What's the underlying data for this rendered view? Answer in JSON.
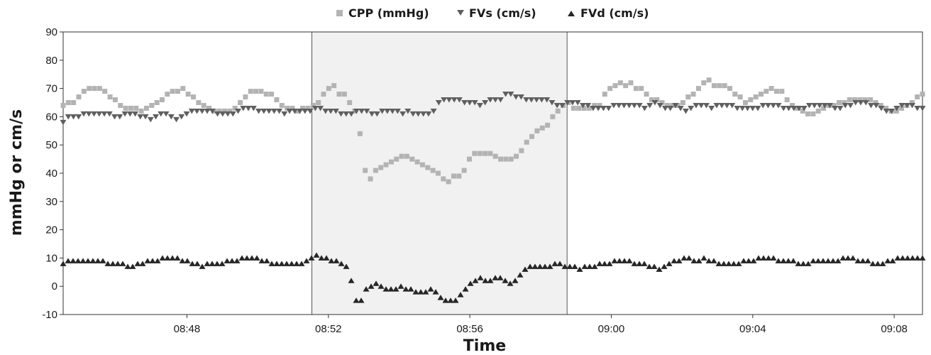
{
  "chart_data": {
    "type": "scatter",
    "title": "",
    "xlabel": "Time",
    "ylabel": "mmHg or cm/s",
    "ylim": [
      -10,
      90
    ],
    "y_ticks": [
      "90",
      "80",
      "70",
      "60",
      "50",
      "40",
      "30",
      "20",
      "10",
      "0",
      "-10"
    ],
    "x_range_minutes": [
      524.5,
      548.8
    ],
    "x_tick_labels": [
      "08:48",
      "08:52",
      "08:56",
      "09:00",
      "09:04",
      "09:08"
    ],
    "x_tick_minutes": [
      528,
      532,
      536,
      540,
      544,
      548
    ],
    "grid": false,
    "legend_position": "top-center",
    "shaded_region": {
      "start": "08:51:32",
      "end": "08:58:45",
      "color": "#f1f1f1"
    },
    "series": [
      {
        "name": "CPP (mmHg)",
        "marker": "square",
        "color": "#b3b3b3",
        "y": [
          64,
          65,
          65,
          67,
          69,
          70,
          70,
          70,
          69,
          67,
          66,
          64,
          63,
          63,
          63,
          62,
          63,
          64,
          65,
          66,
          68,
          69,
          69,
          70,
          68,
          67,
          65,
          64,
          63,
          62,
          62,
          62,
          62,
          63,
          65,
          67,
          69,
          69,
          69,
          68,
          68,
          66,
          64,
          63,
          63,
          62,
          63,
          63,
          64,
          65,
          68,
          70,
          71,
          68,
          68,
          65,
          62,
          54,
          41,
          38,
          41,
          42,
          43,
          44,
          45,
          46,
          46,
          45,
          44,
          43,
          42,
          41,
          40,
          38,
          37,
          39,
          39,
          41,
          45,
          47,
          47,
          47,
          47,
          46,
          45,
          45,
          45,
          46,
          48,
          51,
          53,
          55,
          56,
          57,
          60,
          62,
          64,
          65,
          63,
          63,
          63,
          63,
          64,
          64,
          68,
          70,
          71,
          72,
          71,
          72,
          70,
          70,
          68,
          66,
          66,
          65,
          64,
          64,
          64,
          65,
          67,
          68,
          70,
          72,
          73,
          71,
          71,
          71,
          70,
          68,
          67,
          65,
          66,
          67,
          68,
          69,
          70,
          69,
          69,
          66,
          64,
          63,
          62,
          61,
          61,
          62,
          63,
          64,
          64,
          65,
          65,
          66,
          66,
          66,
          66,
          66,
          65,
          64,
          63,
          62,
          62,
          63,
          64,
          65,
          67,
          68
        ]
      },
      {
        "name": "FVs (cm/s)",
        "marker": "triangle-down",
        "color": "#5f5f5f",
        "y": [
          58,
          60,
          60,
          60,
          61,
          61,
          61,
          61,
          61,
          61,
          60,
          60,
          61,
          61,
          61,
          60,
          60,
          59,
          60,
          61,
          61,
          60,
          59,
          60,
          61,
          62,
          62,
          62,
          62,
          62,
          61,
          61,
          61,
          61,
          62,
          63,
          63,
          63,
          62,
          62,
          62,
          62,
          62,
          61,
          62,
          62,
          62,
          62,
          62,
          63,
          63,
          62,
          62,
          62,
          61,
          61,
          61,
          62,
          62,
          62,
          61,
          61,
          62,
          62,
          62,
          62,
          61,
          62,
          61,
          61,
          61,
          61,
          62,
          65,
          66,
          66,
          66,
          66,
          65,
          65,
          65,
          64,
          65,
          66,
          66,
          66,
          68,
          68,
          67,
          67,
          66,
          66,
          66,
          66,
          66,
          65,
          64,
          64,
          65,
          65,
          65,
          64,
          64,
          63,
          63,
          63,
          63,
          64,
          64,
          64,
          64,
          64,
          64,
          63,
          64,
          65,
          64,
          63,
          63,
          64,
          63,
          62,
          63,
          64,
          64,
          64,
          63,
          64,
          64,
          64,
          64,
          63,
          63,
          63,
          63,
          63,
          64,
          64,
          64,
          64,
          63,
          63,
          63,
          63,
          63,
          64,
          64,
          64,
          64,
          64,
          63,
          63,
          64,
          64,
          65,
          65,
          65,
          64,
          64,
          63,
          62,
          62,
          63,
          64,
          64,
          64,
          63,
          63
        ]
      },
      {
        "name": "FVd (cm/s)",
        "marker": "triangle-up",
        "color": "#262626",
        "y": [
          8,
          9,
          9,
          9,
          9,
          9,
          9,
          9,
          9,
          8,
          8,
          8,
          8,
          7,
          7,
          8,
          8,
          9,
          9,
          9,
          10,
          10,
          10,
          10,
          9,
          9,
          8,
          8,
          7,
          8,
          8,
          8,
          8,
          9,
          9,
          9,
          10,
          10,
          10,
          10,
          9,
          9,
          8,
          8,
          8,
          8,
          8,
          8,
          8,
          9,
          10,
          11,
          10,
          10,
          9,
          9,
          8,
          7,
          2,
          -5,
          -5,
          -1,
          0,
          1,
          0,
          -1,
          -1,
          -1,
          0,
          -1,
          -1,
          -2,
          -2,
          -2,
          -1,
          -2,
          -4,
          -5,
          -5,
          -5,
          -3,
          -1,
          1,
          2,
          3,
          2,
          2,
          3,
          3,
          2,
          1,
          2,
          4,
          6,
          7,
          7,
          7,
          7,
          7,
          8,
          8,
          7,
          7,
          7,
          6,
          7,
          7,
          7,
          8,
          8,
          8,
          9,
          9,
          9,
          9,
          8,
          8,
          8,
          7,
          7,
          6,
          7,
          8,
          9,
          9,
          10,
          10,
          9,
          9,
          10,
          9,
          9,
          8,
          8,
          8,
          8,
          8,
          9,
          9,
          9,
          10,
          10,
          10,
          10,
          9,
          9,
          9,
          9,
          8,
          8,
          8,
          9,
          9,
          9,
          9,
          9,
          9,
          10,
          10,
          10,
          9,
          9,
          9,
          8,
          8,
          8,
          9,
          9,
          10,
          10,
          10,
          10,
          10,
          10
        ]
      }
    ]
  }
}
